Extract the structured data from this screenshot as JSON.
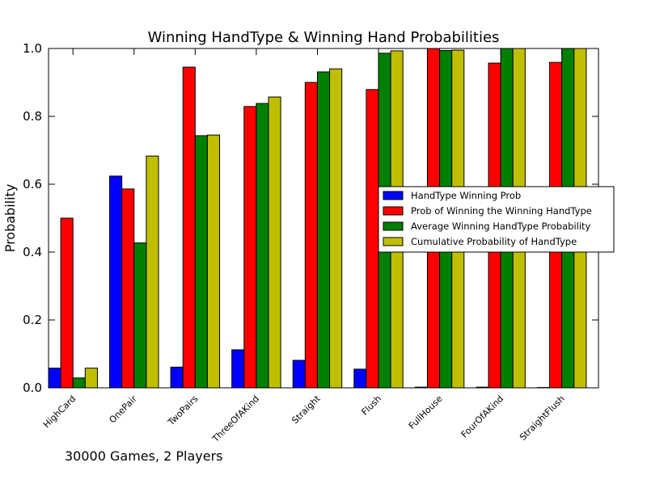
{
  "chart_data": {
    "type": "bar",
    "title": "Winning HandType & Winning Hand Probabilities",
    "xlabel": "",
    "ylabel": "Probability",
    "ylim": [
      0,
      1.0
    ],
    "yticks": [
      "0.0",
      "0.2",
      "0.4",
      "0.6",
      "0.8",
      "1.0"
    ],
    "ytick_values": [
      0,
      0.2,
      0.4,
      0.6,
      0.8,
      1.0
    ],
    "grid": false,
    "legend_position": "right",
    "categories": [
      "HighCard",
      "OnePair",
      "TwoPairs",
      "ThreeOfAKind",
      "Straight",
      "Flush",
      "FullHouse",
      "FourOfAKind",
      "StraightFlush"
    ],
    "series": [
      {
        "name": "HandType Winning Prob",
        "color": "#0000ff",
        "values": [
          0.058,
          0.624,
          0.061,
          0.112,
          0.081,
          0.055,
          0.002,
          0.002,
          0.001
        ]
      },
      {
        "name": "Prob of Winning the Winning HandType",
        "color": "#ff0000",
        "values": [
          0.5,
          0.586,
          0.945,
          0.829,
          0.9,
          0.879,
          1.0,
          0.957,
          0.959
        ]
      },
      {
        "name": "Average Winning HandType Probability",
        "color": "#008000",
        "values": [
          0.029,
          0.427,
          0.743,
          0.838,
          0.931,
          0.986,
          0.994,
          1.0,
          1.0
        ]
      },
      {
        "name": "Cumulative Probability of HandType",
        "color": "#bfbf00",
        "values": [
          0.058,
          0.683,
          0.745,
          0.857,
          0.94,
          0.993,
          0.995,
          1.0,
          1.0
        ]
      }
    ],
    "annotation": "30000 Games,  2 Players"
  }
}
